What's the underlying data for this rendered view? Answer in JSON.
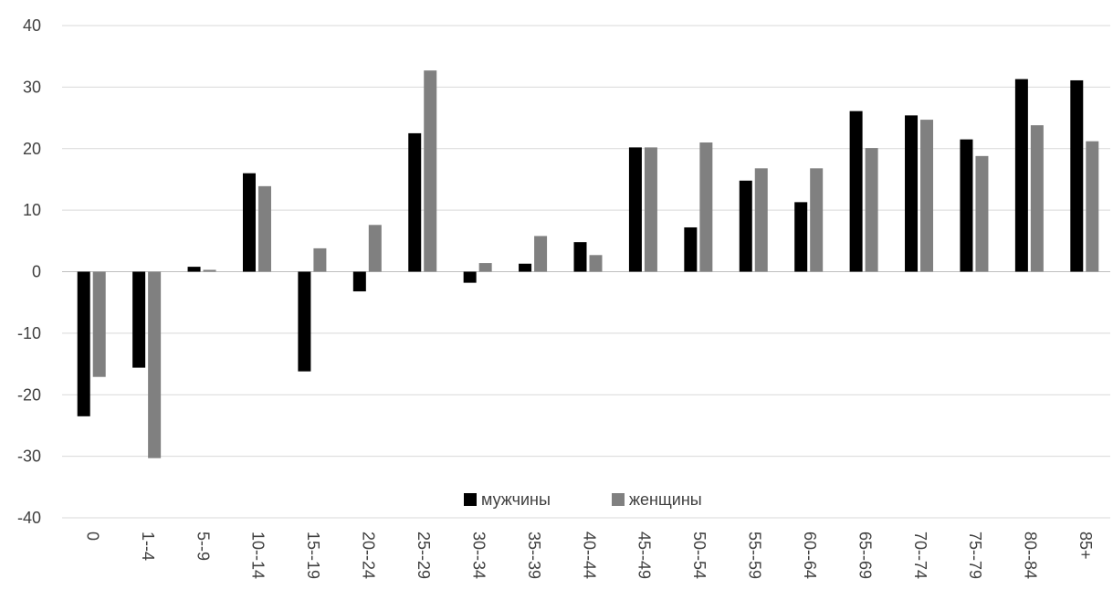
{
  "chart_data": {
    "type": "bar",
    "title": "",
    "xlabel": "",
    "ylabel": "",
    "ylim": [
      -40,
      40
    ],
    "yticks": [
      40,
      30,
      20,
      10,
      0,
      -10,
      -20,
      -30,
      -40
    ],
    "grid": true,
    "legend_position": "bottom-center",
    "categories": [
      "0",
      "1--4",
      "5--9",
      "10--14",
      "15--19",
      "20--24",
      "25--29",
      "30--34",
      "35--39",
      "40--44",
      "45--49",
      "50--54",
      "55--59",
      "60--64",
      "65--69",
      "70--74",
      "75--79",
      "80--84",
      "85+"
    ],
    "series": [
      {
        "name": "мужчины",
        "color": "#000000",
        "values": [
          -23.5,
          -15.6,
          0.8,
          16.0,
          -16.2,
          -3.2,
          22.5,
          -1.8,
          1.3,
          4.8,
          20.2,
          7.2,
          14.8,
          11.3,
          26.1,
          25.4,
          21.5,
          31.3,
          31.1
        ]
      },
      {
        "name": "женщины",
        "color": "#808080",
        "values": [
          -17.1,
          -30.3,
          0.3,
          13.9,
          3.8,
          7.6,
          32.7,
          1.4,
          5.8,
          2.7,
          20.2,
          21.0,
          16.8,
          16.8,
          20.1,
          24.7,
          18.8,
          23.8,
          21.2
        ]
      }
    ]
  }
}
